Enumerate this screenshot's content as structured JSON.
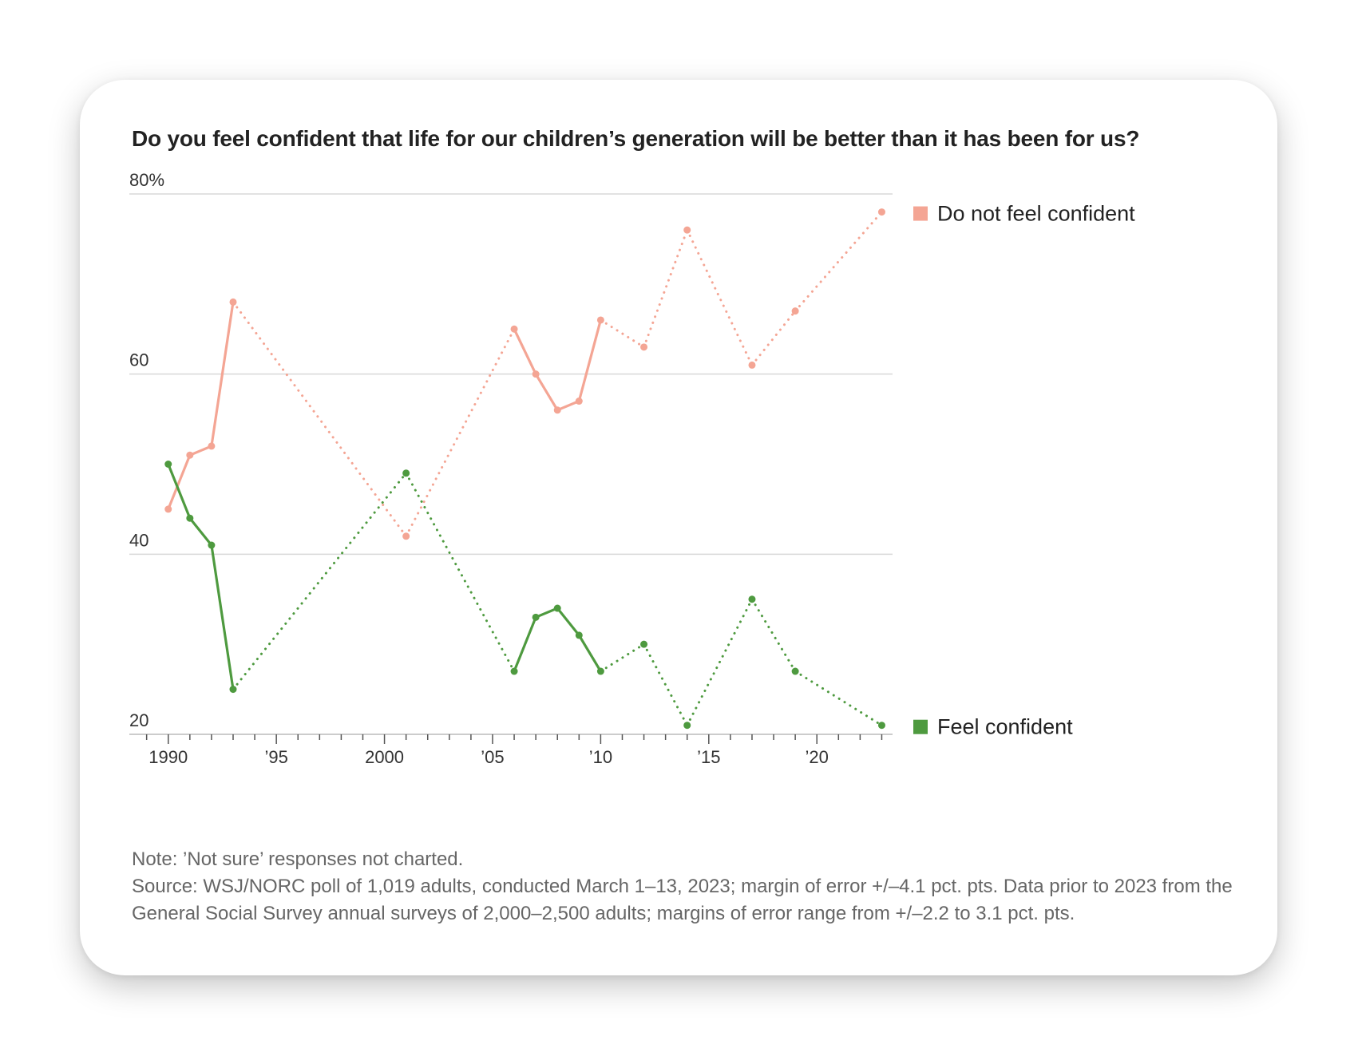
{
  "colors": {
    "not_confident": "#f4a594",
    "confident": "#4e9a3f",
    "grid": "#d8d8d8",
    "axis_text": "#333333"
  },
  "chart_data": {
    "type": "line",
    "title": "Do you feel confident that life for our children’s generation will be better than it has been for us?",
    "ylim": [
      20,
      80
    ],
    "xlim": [
      1988.2,
      2023.5
    ],
    "yticks": [
      {
        "value": 80,
        "label": "80%"
      },
      {
        "value": 60,
        "label": "60"
      },
      {
        "value": 40,
        "label": "40"
      },
      {
        "value": 20,
        "label": "20"
      }
    ],
    "xticks": [
      {
        "value": 1990,
        "label": "1990"
      },
      {
        "value": 1995,
        "label": "’95"
      },
      {
        "value": 2000,
        "label": "2000"
      },
      {
        "value": 2005,
        "label": "’05"
      },
      {
        "value": 2010,
        "label": "’10"
      },
      {
        "value": 2015,
        "label": "’15"
      },
      {
        "value": 2020,
        "label": "’20"
      }
    ],
    "minor_ticks_from": 1989,
    "minor_ticks_to": 2023,
    "series": [
      {
        "name": "Do not feel confident",
        "color": "#f4a594",
        "points": [
          {
            "x": 1990,
            "y": 45
          },
          {
            "x": 1991,
            "y": 51
          },
          {
            "x": 1992,
            "y": 52
          },
          {
            "x": 1993,
            "y": 68
          },
          {
            "x": 2001,
            "y": 42
          },
          {
            "x": 2006,
            "y": 65
          },
          {
            "x": 2007,
            "y": 60
          },
          {
            "x": 2008,
            "y": 56
          },
          {
            "x": 2009,
            "y": 57
          },
          {
            "x": 2010,
            "y": 66
          },
          {
            "x": 2012,
            "y": 63
          },
          {
            "x": 2014,
            "y": 76
          },
          {
            "x": 2017,
            "y": 61
          },
          {
            "x": 2019,
            "y": 67
          },
          {
            "x": 2023,
            "y": 78
          }
        ]
      },
      {
        "name": "Feel confident",
        "color": "#4e9a3f",
        "points": [
          {
            "x": 1990,
            "y": 50
          },
          {
            "x": 1991,
            "y": 44
          },
          {
            "x": 1992,
            "y": 41
          },
          {
            "x": 1993,
            "y": 25
          },
          {
            "x": 2001,
            "y": 49
          },
          {
            "x": 2006,
            "y": 27
          },
          {
            "x": 2007,
            "y": 33
          },
          {
            "x": 2008,
            "y": 34
          },
          {
            "x": 2009,
            "y": 31
          },
          {
            "x": 2010,
            "y": 27
          },
          {
            "x": 2012,
            "y": 30
          },
          {
            "x": 2014,
            "y": 21
          },
          {
            "x": 2017,
            "y": 35
          },
          {
            "x": 2019,
            "y": 27
          },
          {
            "x": 2023,
            "y": 21
          }
        ]
      }
    ],
    "solid_segments_note": "consecutive-year points joined with solid lines; gaps joined with dotted lines"
  },
  "notes": {
    "note": "Note: ’Not sure’ responses not charted.",
    "source": "Source: WSJ/NORC poll of 1,019 adults, conducted March 1–13, 2023; margin of error +/–4.1 pct. pts. Data prior to 2023 from the General Social Survey annual surveys of 2,000–2,500 adults; margins of error range from +/–2.2 to 3.1 pct. pts."
  }
}
